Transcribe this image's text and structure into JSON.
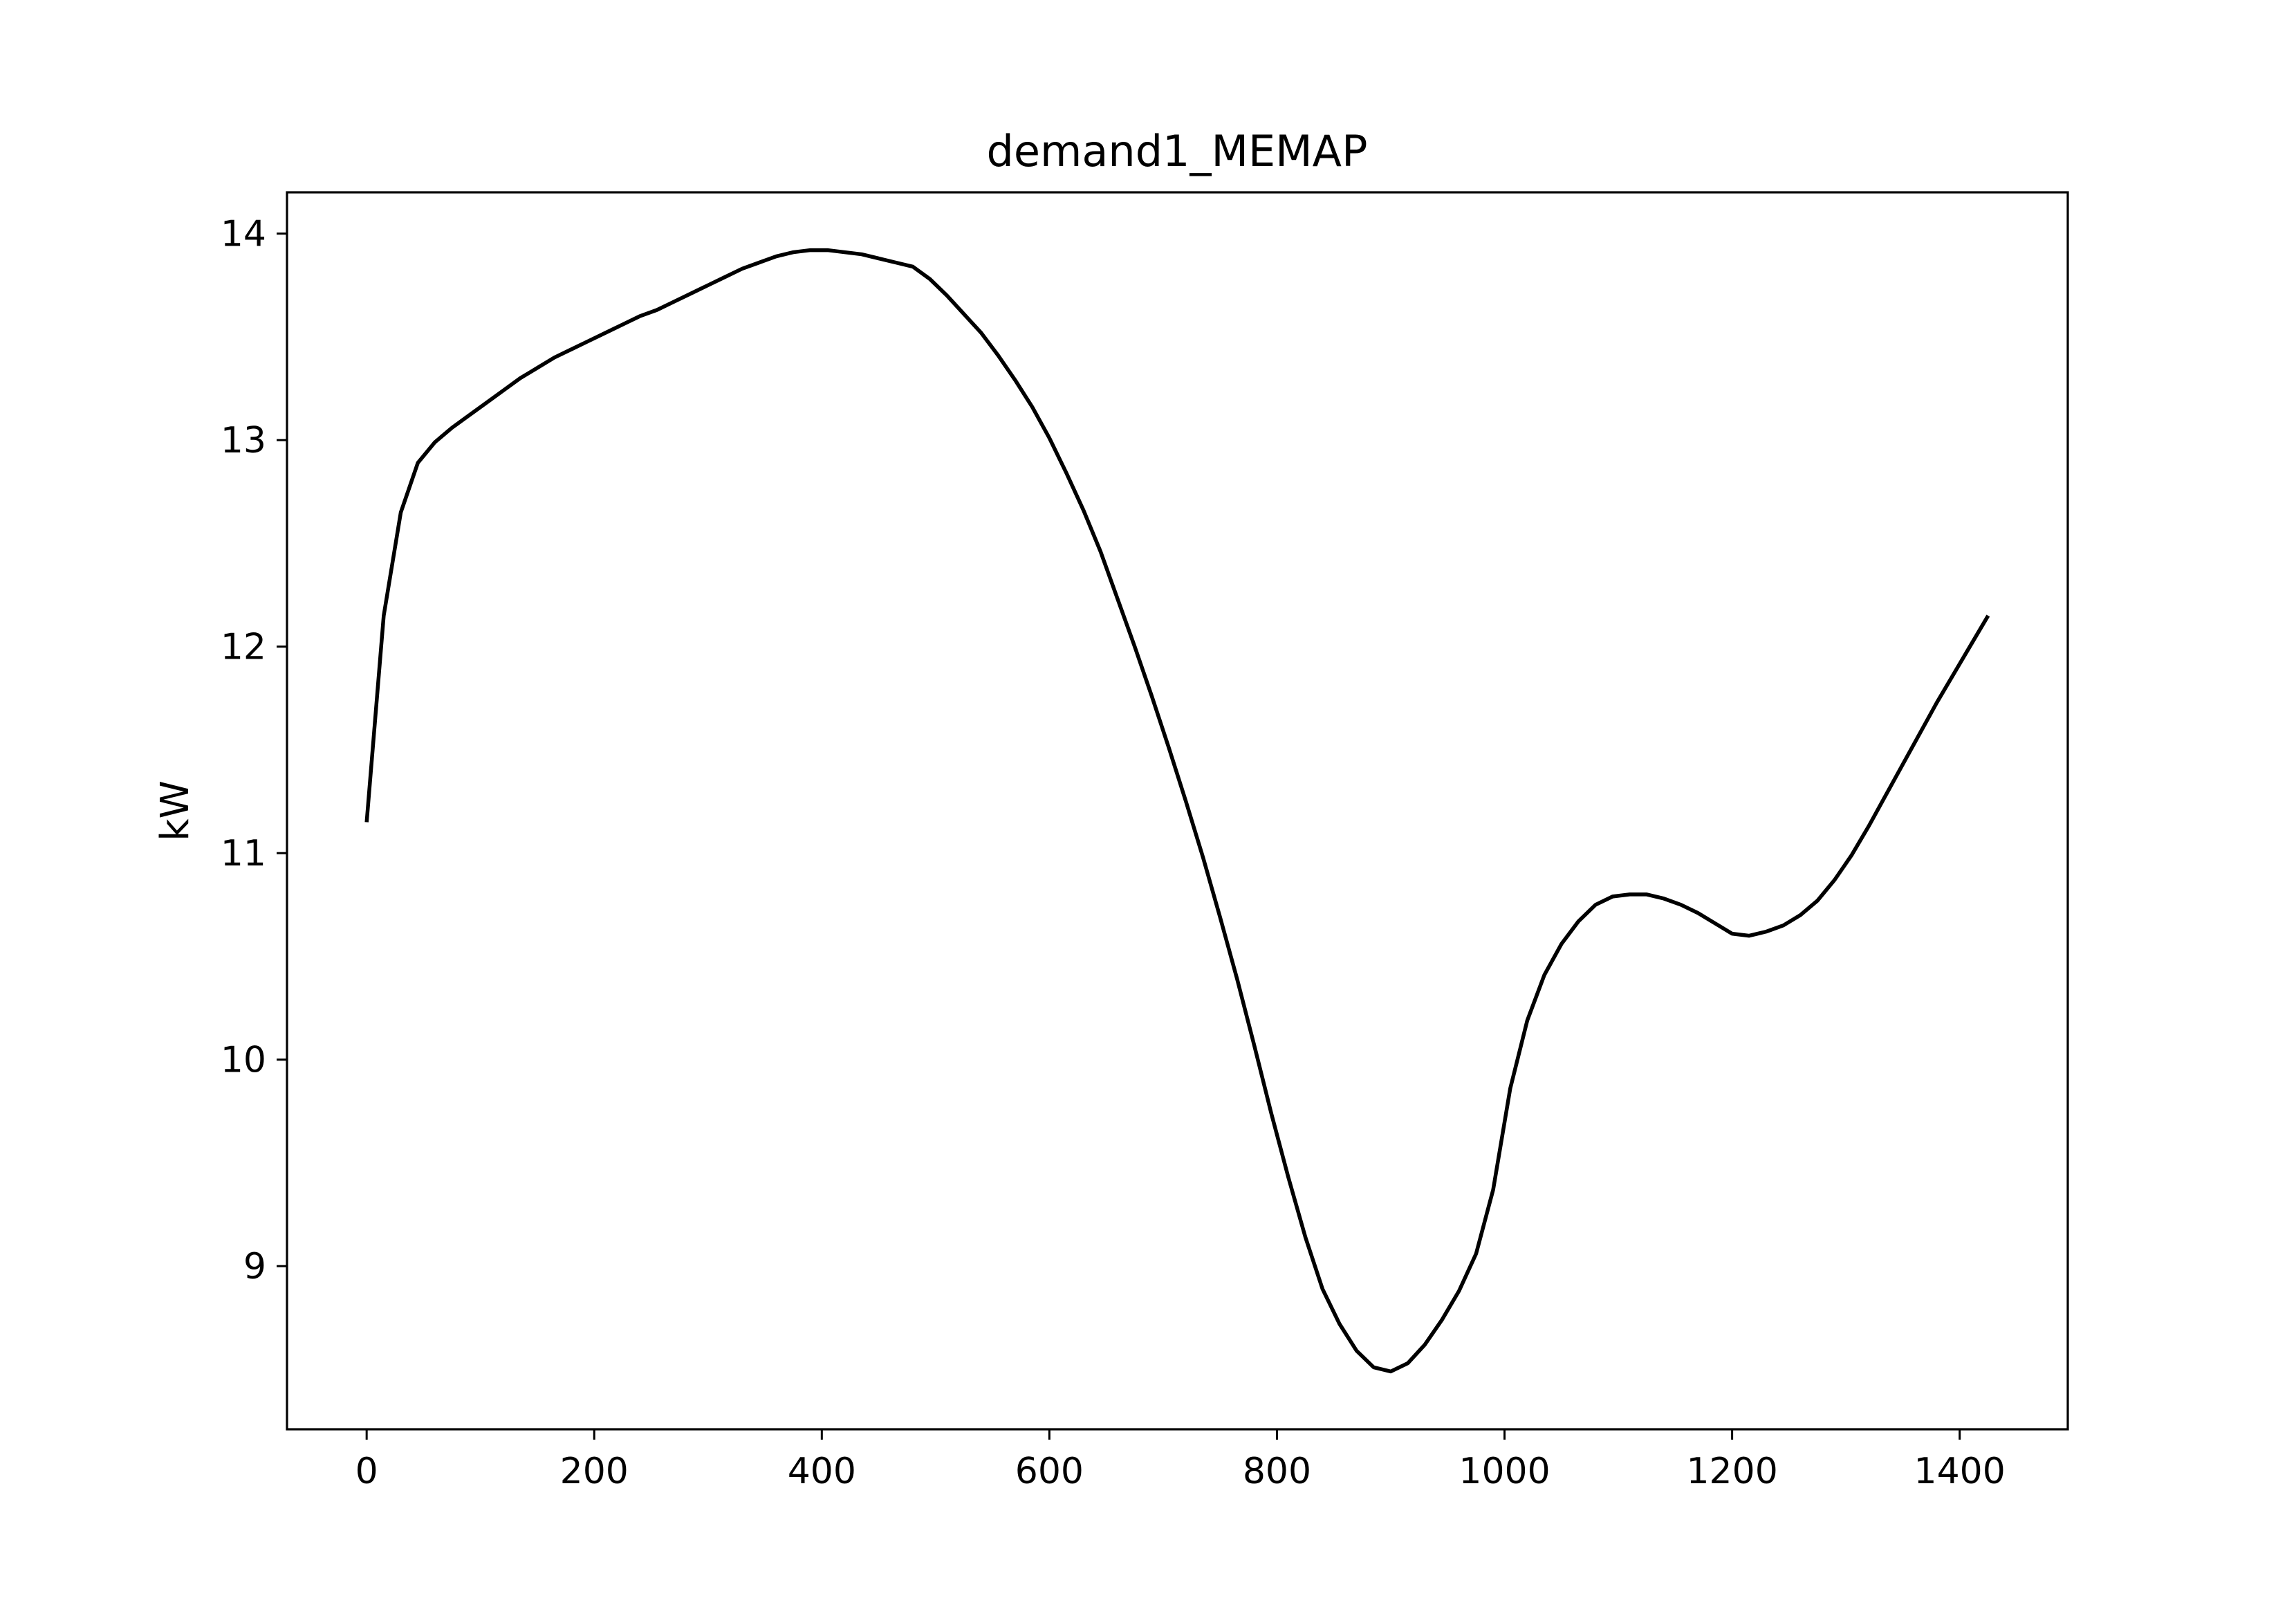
{
  "chart_data": {
    "type": "line",
    "title": "demand1_MEMAP",
    "xlabel": "",
    "ylabel": "kW",
    "xlim": [
      -70,
      1495
    ],
    "ylim": [
      8.21,
      14.2
    ],
    "grid": false,
    "legend": "none",
    "x_ticks": [
      0,
      200,
      400,
      600,
      800,
      1000,
      1200,
      1400
    ],
    "y_ticks": [
      9,
      10,
      11,
      12,
      13,
      14
    ],
    "series": [
      {
        "name": "demand1_MEMAP",
        "color": "#000000",
        "x": [
          0,
          15,
          30,
          45,
          60,
          75,
          90,
          105,
          120,
          135,
          150,
          165,
          180,
          195,
          210,
          225,
          240,
          255,
          270,
          285,
          300,
          315,
          330,
          345,
          360,
          375,
          390,
          405,
          420,
          435,
          450,
          465,
          480,
          495,
          510,
          525,
          540,
          555,
          570,
          585,
          600,
          615,
          630,
          645,
          660,
          675,
          690,
          705,
          720,
          735,
          750,
          765,
          780,
          795,
          810,
          825,
          840,
          855,
          870,
          885,
          900,
          915,
          930,
          945,
          960,
          975,
          990,
          1005,
          1020,
          1035,
          1050,
          1065,
          1080,
          1095,
          1110,
          1125,
          1140,
          1155,
          1170,
          1185,
          1200,
          1215,
          1230,
          1245,
          1260,
          1275,
          1290,
          1305,
          1320,
          1335,
          1350,
          1365,
          1380,
          1395,
          1410,
          1425
        ],
        "y": [
          11.15,
          12.15,
          12.65,
          12.89,
          12.99,
          13.06,
          13.12,
          13.18,
          13.24,
          13.3,
          13.35,
          13.4,
          13.44,
          13.48,
          13.52,
          13.56,
          13.6,
          13.63,
          13.67,
          13.71,
          13.75,
          13.79,
          13.83,
          13.86,
          13.89,
          13.91,
          13.92,
          13.92,
          13.91,
          13.9,
          13.88,
          13.86,
          13.84,
          13.78,
          13.7,
          13.61,
          13.52,
          13.41,
          13.29,
          13.16,
          13.01,
          12.84,
          12.66,
          12.46,
          12.23,
          12.0,
          11.76,
          11.51,
          11.25,
          10.98,
          10.69,
          10.39,
          10.07,
          9.74,
          9.43,
          9.14,
          8.89,
          8.72,
          8.59,
          8.51,
          8.49,
          8.53,
          8.62,
          8.74,
          8.88,
          9.06,
          9.37,
          9.86,
          10.19,
          10.41,
          10.56,
          10.67,
          10.75,
          10.79,
          10.8,
          10.8,
          10.78,
          10.75,
          10.71,
          10.66,
          10.61,
          10.6,
          10.62,
          10.65,
          10.7,
          10.77,
          10.87,
          10.99,
          11.13,
          11.28,
          11.43,
          11.58,
          11.73,
          11.87,
          12.01,
          12.15
        ]
      }
    ]
  }
}
